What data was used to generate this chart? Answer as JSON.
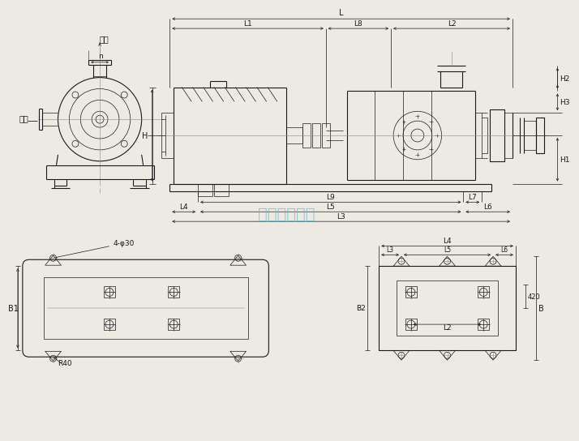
{
  "bg_color": "#ede9e3",
  "line_color": "#1a1a1a",
  "dim_color": "#1a1a1a",
  "watermark_color": "#5bbcce",
  "watermark_text": "永嘉龙洋泵阀",
  "label_tuchut": "吐出",
  "label_xiru": "吸入",
  "label_n": "n",
  "label_H": "H",
  "label_H1": "H1",
  "label_H2": "H2",
  "label_H3": "H3",
  "label_L": "L",
  "label_L1": "L1",
  "label_L2": "L2",
  "label_L3": "L3",
  "label_L4": "L4",
  "label_L5": "L5",
  "label_L6": "L6",
  "label_L7": "L7",
  "label_L8": "L8",
  "label_L9": "L9",
  "label_B1": "B1",
  "label_B2": "B2",
  "label_B": "B",
  "label_4phi30": "4-φ30",
  "label_R40": "R40",
  "label_420": "420"
}
